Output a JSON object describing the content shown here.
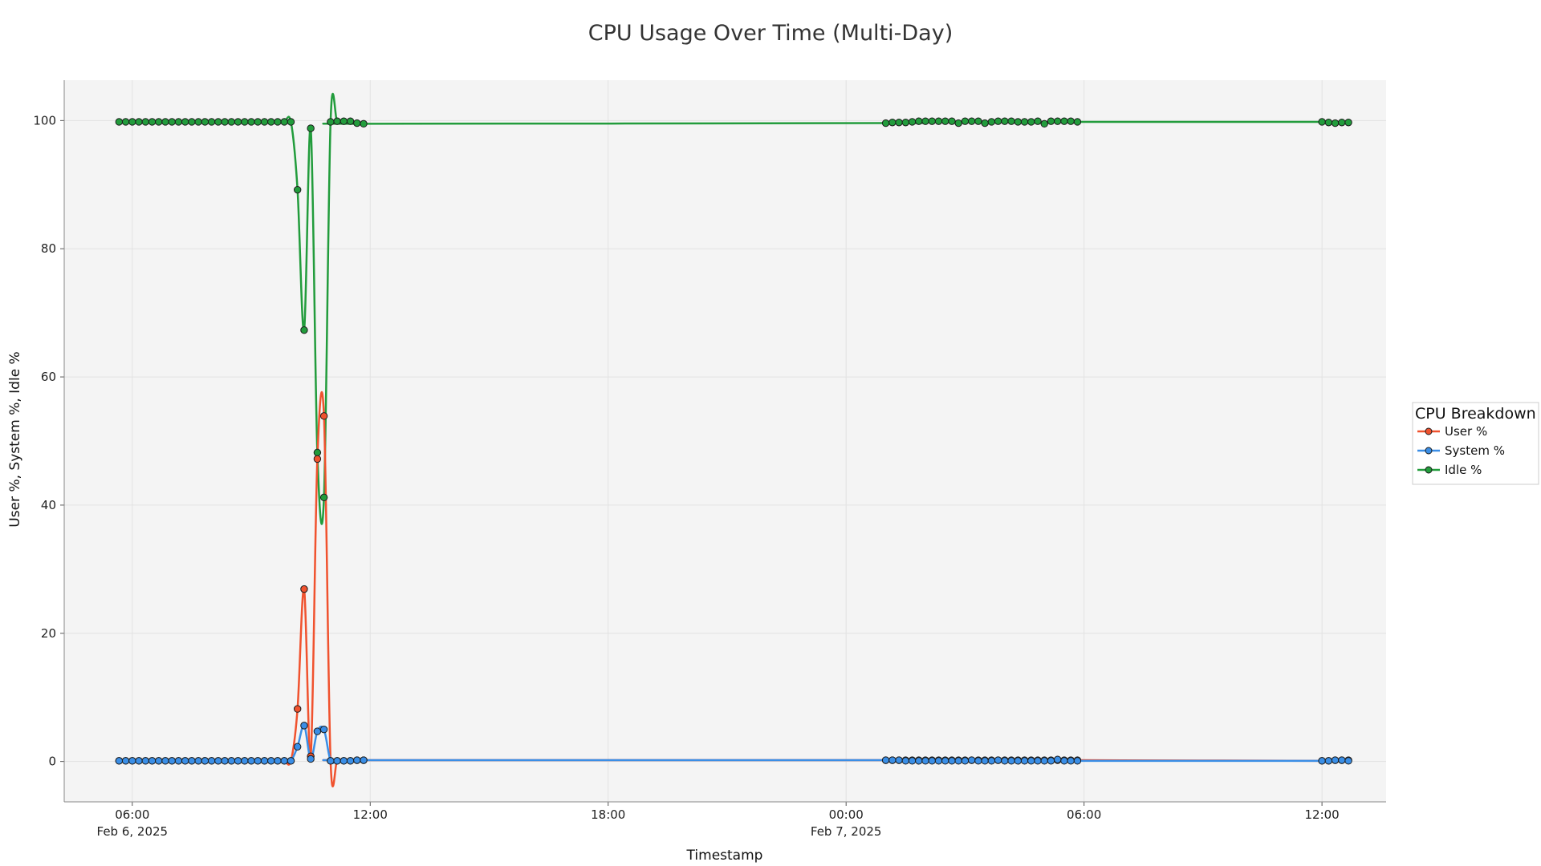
{
  "chart_data": {
    "type": "line",
    "title": "CPU Usage Over Time (Multi-Day)",
    "xlabel": "Timestamp",
    "ylabel": "User %, System %, Idle %",
    "xlim": [
      "2025-02-06 04:17",
      "2025-02-07 13:37"
    ],
    "ylim": [
      -6.3,
      106.3
    ],
    "grid": true,
    "legend": {
      "title": "CPU Breakdown",
      "position": "right"
    },
    "x_ticks": [
      {
        "x": "2025-02-06 06:00",
        "lines": [
          "06:00",
          "Feb 6, 2025"
        ]
      },
      {
        "x": "2025-02-06 12:00",
        "lines": [
          "12:00"
        ]
      },
      {
        "x": "2025-02-06 18:00",
        "lines": [
          "18:00"
        ]
      },
      {
        "x": "2025-02-07 00:00",
        "lines": [
          "00:00",
          "Feb 7, 2025"
        ]
      },
      {
        "x": "2025-02-07 06:00",
        "lines": [
          "06:00"
        ]
      },
      {
        "x": "2025-02-07 12:00",
        "lines": [
          "12:00"
        ]
      }
    ],
    "y_ticks": [
      0,
      20,
      40,
      60,
      80,
      100
    ],
    "x": [
      "2025-02-06 05:40",
      "2025-02-06 05:50",
      "2025-02-06 06:00",
      "2025-02-06 06:10",
      "2025-02-06 06:20",
      "2025-02-06 06:30",
      "2025-02-06 06:40",
      "2025-02-06 06:50",
      "2025-02-06 07:00",
      "2025-02-06 07:10",
      "2025-02-06 07:20",
      "2025-02-06 07:30",
      "2025-02-06 07:40",
      "2025-02-06 07:50",
      "2025-02-06 08:00",
      "2025-02-06 08:10",
      "2025-02-06 08:20",
      "2025-02-06 08:30",
      "2025-02-06 08:40",
      "2025-02-06 08:50",
      "2025-02-06 09:00",
      "2025-02-06 09:10",
      "2025-02-06 09:20",
      "2025-02-06 09:30",
      "2025-02-06 09:40",
      "2025-02-06 09:50",
      "2025-02-06 10:00",
      "2025-02-06 10:10",
      "2025-02-06 10:20",
      "2025-02-06 10:30",
      "2025-02-06 10:40",
      "2025-02-06 10:50",
      "2025-02-06 11:00",
      "2025-02-06 11:10",
      "2025-02-06 11:20",
      "2025-02-06 11:30",
      "2025-02-06 11:40",
      "2025-02-06 11:50",
      "2025-02-07 01:00",
      "2025-02-07 01:10",
      "2025-02-07 01:20",
      "2025-02-07 01:30",
      "2025-02-07 01:40",
      "2025-02-07 01:50",
      "2025-02-07 02:00",
      "2025-02-07 02:10",
      "2025-02-07 02:20",
      "2025-02-07 02:30",
      "2025-02-07 02:40",
      "2025-02-07 02:50",
      "2025-02-07 03:00",
      "2025-02-07 03:10",
      "2025-02-07 03:20",
      "2025-02-07 03:30",
      "2025-02-07 03:40",
      "2025-02-07 03:50",
      "2025-02-07 04:00",
      "2025-02-07 04:10",
      "2025-02-07 04:20",
      "2025-02-07 04:30",
      "2025-02-07 04:40",
      "2025-02-07 04:50",
      "2025-02-07 05:00",
      "2025-02-07 05:10",
      "2025-02-07 05:20",
      "2025-02-07 05:30",
      "2025-02-07 05:40",
      "2025-02-07 05:50",
      "2025-02-07 12:00",
      "2025-02-07 12:10",
      "2025-02-07 12:20",
      "2025-02-07 12:30",
      "2025-02-07 12:40"
    ],
    "series": [
      {
        "name": "User %",
        "color": "#f0522e",
        "values": [
          0.1,
          0.1,
          0.1,
          0.1,
          0.1,
          0.1,
          0.1,
          0.1,
          0.1,
          0.1,
          0.1,
          0.1,
          0.1,
          0.1,
          0.1,
          0.1,
          0.1,
          0.1,
          0.1,
          0.1,
          0.1,
          0.1,
          0.1,
          0.1,
          0.1,
          0.1,
          0.1,
          8.2,
          26.9,
          0.8,
          47.2,
          53.9,
          0.1,
          0.1,
          0.1,
          0.1,
          0.2,
          0.2,
          0.2,
          0.2,
          0.2,
          0.2,
          0.2,
          0.2,
          0.2,
          0.2,
          0.2,
          0.2,
          0.2,
          0.2,
          0.2,
          0.2,
          0.2,
          0.2,
          0.2,
          0.2,
          0.2,
          0.2,
          0.2,
          0.2,
          0.2,
          0.2,
          0.2,
          0.2,
          0.2,
          0.2,
          0.2,
          0.2,
          0.1,
          0.1,
          0.2,
          0.2,
          0.2
        ]
      },
      {
        "name": "System %",
        "color": "#3a8ee6",
        "values": [
          0.1,
          0.1,
          0.1,
          0.1,
          0.1,
          0.1,
          0.1,
          0.1,
          0.1,
          0.1,
          0.1,
          0.1,
          0.1,
          0.1,
          0.1,
          0.1,
          0.1,
          0.1,
          0.1,
          0.1,
          0.1,
          0.1,
          0.1,
          0.1,
          0.1,
          0.1,
          0.1,
          2.3,
          5.6,
          0.4,
          4.7,
          5.0,
          0.1,
          0.1,
          0.1,
          0.1,
          0.2,
          0.2,
          0.2,
          0.2,
          0.2,
          0.1,
          0.1,
          0.1,
          0.1,
          0.1,
          0.1,
          0.1,
          0.1,
          0.1,
          0.1,
          0.2,
          0.1,
          0.1,
          0.1,
          0.2,
          0.1,
          0.1,
          0.1,
          0.1,
          0.1,
          0.1,
          0.1,
          0.1,
          0.3,
          0.1,
          0.1,
          0.1,
          0.1,
          0.1,
          0.2,
          0.2,
          0.1
        ]
      },
      {
        "name": "Idle %",
        "color": "#229c3c",
        "values": [
          99.8,
          99.8,
          99.8,
          99.8,
          99.8,
          99.8,
          99.8,
          99.8,
          99.8,
          99.8,
          99.8,
          99.8,
          99.8,
          99.8,
          99.8,
          99.8,
          99.8,
          99.8,
          99.8,
          99.8,
          99.8,
          99.8,
          99.8,
          99.8,
          99.8,
          99.8,
          99.8,
          89.2,
          67.3,
          98.8,
          48.2,
          41.2,
          99.8,
          99.9,
          99.9,
          99.9,
          99.6,
          99.5,
          99.6,
          99.7,
          99.7,
          99.7,
          99.8,
          99.9,
          99.9,
          99.9,
          99.9,
          99.9,
          99.9,
          99.6,
          99.9,
          99.9,
          99.9,
          99.6,
          99.8,
          99.9,
          99.9,
          99.9,
          99.8,
          99.8,
          99.8,
          99.9,
          99.5,
          99.9,
          99.9,
          99.9,
          99.9,
          99.8,
          99.8,
          99.7,
          99.6,
          99.7,
          99.7
        ]
      }
    ]
  }
}
